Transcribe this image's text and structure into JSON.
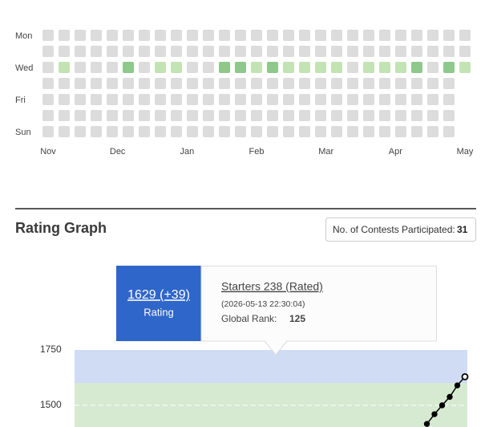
{
  "chart_data": [
    {
      "type": "heatmap",
      "rows": [
        "Mon",
        null,
        "Wed",
        null,
        "Fri",
        null,
        "Sun"
      ],
      "x_labels": [
        "Nov",
        "Dec",
        "Jan",
        "Feb",
        "Mar",
        "Apr",
        "May"
      ],
      "colors": [
        "#dcdcdc",
        "#c4e3b4",
        "#8ec98b"
      ],
      "values": [
        [
          0,
          0,
          0,
          0,
          0,
          0,
          0,
          0,
          0,
          0,
          0,
          0,
          0,
          0,
          0,
          0,
          0,
          0,
          0,
          0,
          0,
          0,
          0,
          0,
          0,
          0,
          0
        ],
        [
          0,
          0,
          0,
          0,
          0,
          0,
          0,
          0,
          0,
          0,
          0,
          0,
          0,
          0,
          0,
          0,
          0,
          0,
          0,
          0,
          0,
          0,
          0,
          0,
          0,
          0,
          0
        ],
        [
          0,
          1,
          0,
          0,
          0,
          2,
          0,
          1,
          1,
          0,
          0,
          2,
          2,
          1,
          2,
          1,
          1,
          1,
          1,
          0,
          1,
          1,
          1,
          2,
          0,
          2,
          1
        ],
        [
          0,
          0,
          0,
          0,
          0,
          0,
          0,
          0,
          0,
          0,
          0,
          0,
          0,
          0,
          0,
          0,
          0,
          0,
          0,
          0,
          0,
          0,
          0,
          0,
          0,
          0,
          null
        ],
        [
          0,
          0,
          0,
          0,
          0,
          0,
          0,
          0,
          0,
          0,
          0,
          0,
          0,
          0,
          0,
          0,
          0,
          0,
          0,
          0,
          0,
          0,
          0,
          0,
          0,
          0,
          null
        ],
        [
          0,
          0,
          0,
          0,
          0,
          0,
          0,
          0,
          0,
          0,
          0,
          0,
          0,
          0,
          0,
          0,
          0,
          0,
          0,
          0,
          0,
          0,
          0,
          0,
          0,
          0,
          null
        ],
        [
          0,
          0,
          0,
          0,
          0,
          0,
          0,
          0,
          0,
          0,
          0,
          0,
          0,
          0,
          0,
          0,
          0,
          0,
          0,
          0,
          0,
          0,
          0,
          0,
          0,
          0,
          null
        ]
      ]
    },
    {
      "type": "line",
      "ylim": [
        1400,
        1750
      ],
      "yticks": [
        1500,
        1750
      ],
      "grid": true,
      "bands": [
        {
          "from": 1600,
          "to": 1750,
          "color": "#cfdcf3"
        },
        {
          "from": 1400,
          "to": 1600,
          "color": "#d6ead2"
        }
      ],
      "series": [
        {
          "color": "#000000",
          "values": [
            1416,
            1460,
            1500,
            1538,
            1590,
            1629
          ]
        }
      ]
    }
  ],
  "section": {
    "title": "Rating Graph",
    "contests_label": "No. of Contests Participated:",
    "contests": 31
  },
  "tooltip": {
    "rating": "1629 (+39)",
    "rating_label": "Rating",
    "contest": "Starters 238 (Rated)",
    "date": "(2026-05-13 22:30:04)",
    "rank_label": "Global Rank:",
    "rank": 125
  }
}
